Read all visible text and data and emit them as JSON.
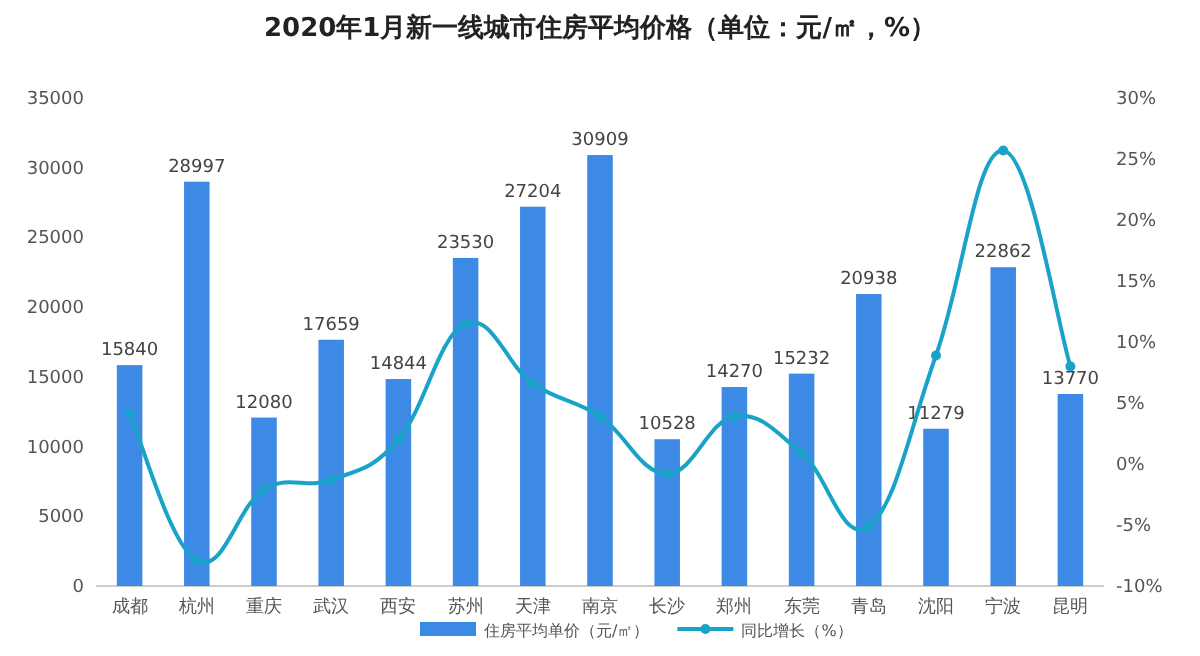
{
  "chart_data": {
    "type": "bar",
    "title": "2020年1月新一线城市住房平均价格（单位：元/㎡，%）",
    "categories": [
      "成都",
      "杭州",
      "重庆",
      "武汉",
      "西安",
      "苏州",
      "天津",
      "南京",
      "长沙",
      "郑州",
      "东莞",
      "青岛",
      "沈阳",
      "宁波",
      "昆明"
    ],
    "series": [
      {
        "name": "住房平均单价（元/㎡）",
        "color": "#3d8ae6",
        "values": [
          15840,
          28997,
          12080,
          17659,
          14844,
          23530,
          27204,
          30909,
          10528,
          14270,
          15232,
          20938,
          11279,
          22862,
          13770
        ],
        "value_labels": [
          "15840",
          "28997",
          "12080",
          "17659",
          "14844",
          "23530",
          "27204",
          "30909",
          "10528",
          "14270",
          "15232",
          "20938",
          "11279",
          "22862",
          "13770"
        ]
      },
      {
        "name": "同比增长（%）",
        "type": "line",
        "axis": "y2",
        "color": "#1aa3c8",
        "marker": "circle",
        "values": [
          4.1,
          -7.9,
          -2.1,
          -1.3,
          2.0,
          11.5,
          6.6,
          3.9,
          -0.8,
          3.9,
          0.9,
          -5.1,
          8.9,
          25.7,
          8.0
        ]
      }
    ],
    "ylim": [
      0,
      35000
    ],
    "yticks": [
      0,
      5000,
      10000,
      15000,
      20000,
      25000,
      30000,
      35000
    ],
    "y2lim": [
      -10,
      30
    ],
    "y2ticks": [
      {
        "value": -10,
        "label": "-10%"
      },
      {
        "value": -5,
        "label": "-5%"
      },
      {
        "value": 0,
        "label": "0%"
      },
      {
        "value": 5,
        "label": "5%"
      },
      {
        "value": 10,
        "label": "10%"
      },
      {
        "value": 15,
        "label": "15%"
      },
      {
        "value": 20,
        "label": "20%"
      },
      {
        "value": 25,
        "label": "25%"
      },
      {
        "value": 30,
        "label": "30%"
      }
    ],
    "grid": false,
    "legend": "bottom"
  }
}
